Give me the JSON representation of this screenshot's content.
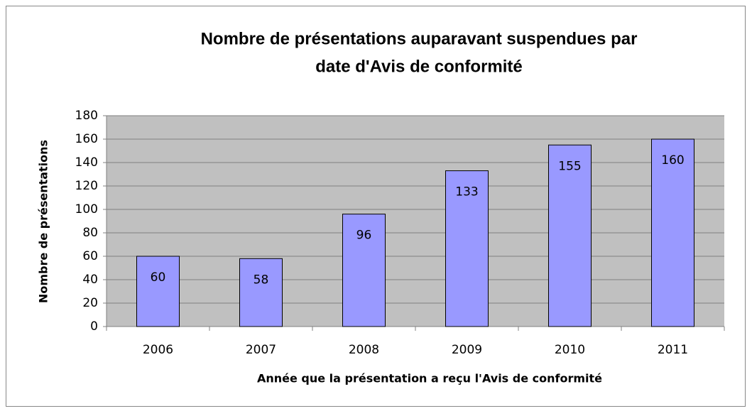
{
  "chart_data": {
    "type": "bar",
    "title": [
      "Nombre de présentations auparavant suspendues par",
      "date d'Avis de conformité"
    ],
    "x_label": "Année que la présentation a reçu l'Avis de conformité",
    "y_label": "Nombre de présentations",
    "categories": [
      "2006",
      "2007",
      "2008",
      "2009",
      "2010",
      "2011"
    ],
    "values": [
      60,
      58,
      96,
      133,
      155,
      160
    ],
    "color": "#9999ff",
    "ylim": [
      0,
      180
    ],
    "yticks": [
      0,
      20,
      40,
      60,
      80,
      100,
      120,
      140,
      160,
      180
    ],
    "grid": true
  }
}
